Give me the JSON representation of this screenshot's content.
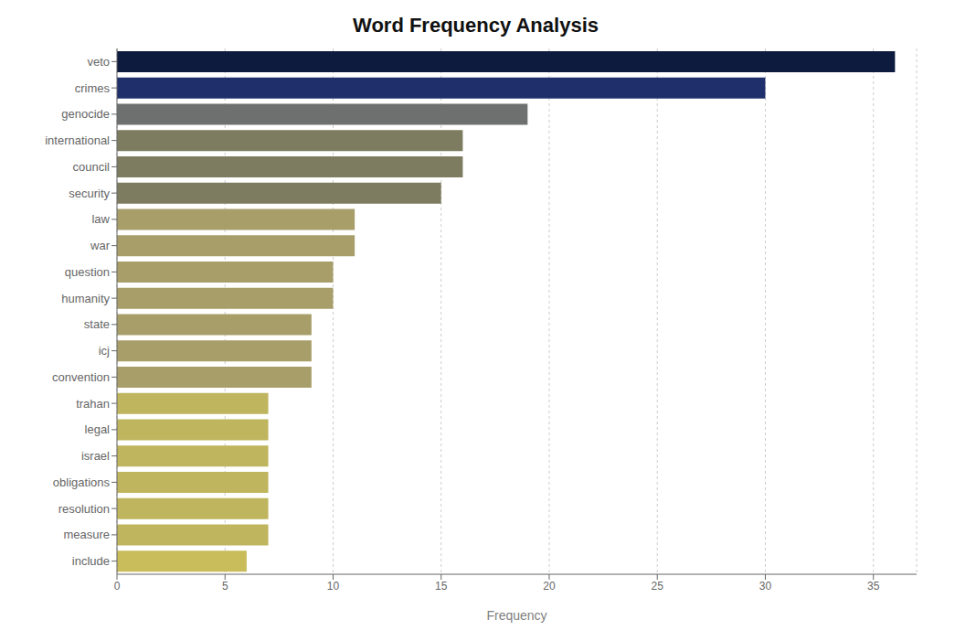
{
  "chart_data": {
    "type": "bar",
    "orientation": "horizontal",
    "title": "Word Frequency Analysis",
    "categories": [
      "veto",
      "crimes",
      "genocide",
      "international",
      "council",
      "security",
      "law",
      "war",
      "question",
      "humanity",
      "state",
      "icj",
      "convention",
      "trahan",
      "legal",
      "israel",
      "obligations",
      "resolution",
      "measure",
      "include"
    ],
    "values": [
      36,
      30,
      19,
      16,
      16,
      15,
      11,
      11,
      10,
      10,
      9,
      9,
      9,
      7,
      7,
      7,
      7,
      7,
      7,
      6
    ],
    "colors": [
      "#0d1b3e",
      "#1e2f6b",
      "#6e7070",
      "#7d7c60",
      "#7d7c60",
      "#7d7c60",
      "#a89e6a",
      "#a89e6a",
      "#a89e6a",
      "#a89e6a",
      "#a89e6a",
      "#a89e6a",
      "#a89e6a",
      "#bfb55e",
      "#bfb55e",
      "#bfb55e",
      "#bfb55e",
      "#bfb55e",
      "#bfb55e",
      "#c9bc5a"
    ],
    "xlabel": "Frequency",
    "xlim": [
      0,
      37
    ],
    "xticks": [
      0,
      5,
      10,
      15,
      20,
      25,
      30,
      35
    ],
    "grid": true
  }
}
